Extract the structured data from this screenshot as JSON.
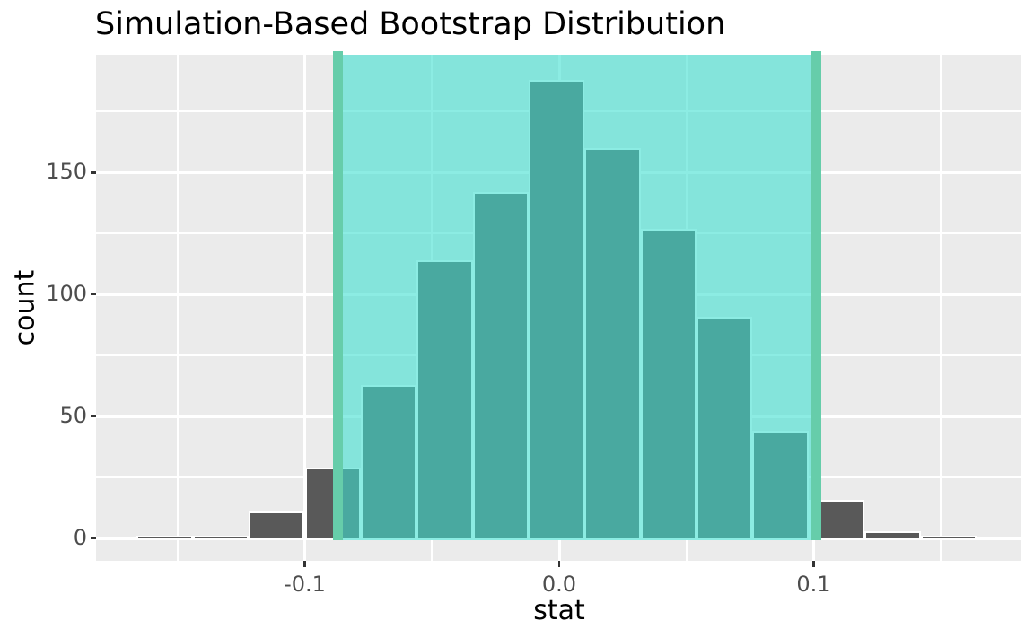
{
  "title": "Simulation-Based Bootstrap Distribution",
  "chart_data": {
    "type": "bar",
    "subtype": "histogram",
    "title": "Simulation-Based Bootstrap Distribution",
    "xlabel": "stat",
    "ylabel": "count",
    "x_tick_values": [
      -0.1,
      0.0,
      0.1
    ],
    "x_tick_labels": [
      "-0.1",
      "0.0",
      "0.1"
    ],
    "y_tick_values": [
      0,
      50,
      100,
      150
    ],
    "y_tick_labels": [
      "0",
      "50",
      "100",
      "150"
    ],
    "x_minor_gridlines": [
      -0.15,
      -0.05,
      0.05,
      0.15
    ],
    "y_minor_gridlines": [
      25,
      75,
      125,
      175
    ],
    "xlim": [
      -0.182,
      0.182
    ],
    "ylim": [
      -9.2,
      198.3
    ],
    "grid": true,
    "legend": false,
    "bin_width": 0.022,
    "bins": [
      {
        "x0": -0.166,
        "x1": -0.144,
        "count": 1
      },
      {
        "x0": -0.144,
        "x1": -0.122,
        "count": 1
      },
      {
        "x0": -0.122,
        "x1": -0.1,
        "count": 11
      },
      {
        "x0": -0.1,
        "x1": -0.078,
        "count": 29
      },
      {
        "x0": -0.078,
        "x1": -0.056,
        "count": 63
      },
      {
        "x0": -0.056,
        "x1": -0.034,
        "count": 114
      },
      {
        "x0": -0.034,
        "x1": -0.012,
        "count": 142
      },
      {
        "x0": -0.012,
        "x1": 0.01,
        "count": 188
      },
      {
        "x0": 0.01,
        "x1": 0.032,
        "count": 160
      },
      {
        "x0": 0.032,
        "x1": 0.054,
        "count": 127
      },
      {
        "x0": 0.054,
        "x1": 0.076,
        "count": 91
      },
      {
        "x0": 0.076,
        "x1": 0.098,
        "count": 44
      },
      {
        "x0": 0.098,
        "x1": 0.12,
        "count": 16
      },
      {
        "x0": 0.12,
        "x1": 0.142,
        "count": 3
      },
      {
        "x0": 0.142,
        "x1": 0.164,
        "count": 1
      }
    ],
    "confidence_interval": {
      "lower": -0.087,
      "upper": 0.101
    },
    "colors": {
      "bar_fill": "#595959",
      "bar_border": "#FFFFFF",
      "panel_background": "#EBEBEB",
      "gridline": "#FFFFFF",
      "ci_fill": "#40E0D0",
      "ci_fill_alpha": 0.6,
      "ci_line": "#66CDAA",
      "axis_text": "#4D4D4D",
      "tick_mark": "#333333",
      "title_text": "#000000"
    }
  }
}
